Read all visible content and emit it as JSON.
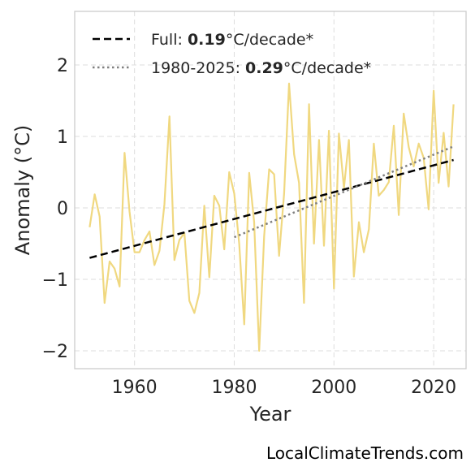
{
  "chart_data": {
    "type": "line",
    "xlabel": "Year",
    "ylabel": "Anomaly (°C)",
    "xlim": [
      1948,
      2026.5
    ],
    "ylim": [
      -2.25,
      2.75
    ],
    "xticks": [
      1960,
      1980,
      2000,
      2020
    ],
    "yticks": [
      -2,
      -1,
      0,
      1,
      2
    ],
    "ytick_labels": [
      "−2",
      "−1",
      "0",
      "1",
      "2"
    ],
    "grid": true,
    "legend_position": "top-left",
    "series": [
      {
        "style": "solid",
        "color": "#f0d880",
        "x": [
          1951,
          1952,
          1953,
          1954,
          1955,
          1956,
          1957,
          1958,
          1959,
          1960,
          1961,
          1962,
          1963,
          1964,
          1965,
          1966,
          1967,
          1968,
          1969,
          1970,
          1971,
          1972,
          1973,
          1974,
          1975,
          1976,
          1977,
          1978,
          1979,
          1980,
          1981,
          1982,
          1983,
          1984,
          1985,
          1986,
          1987,
          1988,
          1989,
          1990,
          1991,
          1992,
          1993,
          1994,
          1995,
          1996,
          1997,
          1998,
          1999,
          2000,
          2001,
          2002,
          2003,
          2004,
          2005,
          2006,
          2007,
          2008,
          2009,
          2010,
          2011,
          2012,
          2013,
          2014,
          2015,
          2016,
          2017,
          2018,
          2019,
          2020,
          2021,
          2022,
          2023,
          2024
        ],
        "values": [
          -0.27,
          0.19,
          -0.12,
          -1.33,
          -0.75,
          -0.85,
          -1.1,
          0.77,
          -0.05,
          -0.62,
          -0.62,
          -0.45,
          -0.33,
          -0.8,
          -0.6,
          0.05,
          1.28,
          -0.73,
          -0.45,
          -0.35,
          -1.3,
          -1.47,
          -1.19,
          0.03,
          -0.97,
          0.17,
          0.03,
          -0.58,
          0.5,
          0.2,
          -0.5,
          -1.63,
          0.49,
          -0.2,
          -2.0,
          -0.4,
          0.54,
          0.47,
          -0.67,
          0.2,
          1.74,
          0.75,
          0.35,
          -1.33,
          1.45,
          -0.5,
          0.95,
          -0.53,
          1.08,
          -1.13,
          1.04,
          0.28,
          0.95,
          -0.96,
          -0.2,
          -0.62,
          -0.3,
          0.9,
          0.17,
          0.25,
          0.36,
          1.15,
          -0.1,
          1.32,
          0.85,
          0.58,
          0.9,
          0.7,
          -0.02,
          1.64,
          0.35,
          1.05,
          0.3,
          1.45
        ]
      },
      {
        "name": "Full",
        "style": "dashed",
        "color": "#000000",
        "x": [
          1951,
          2024
        ],
        "values": [
          -0.7,
          0.67
        ],
        "legend_prefix": "Full: ",
        "legend_value": "0.19",
        "legend_suffix": "°C/decade*"
      },
      {
        "name": "1980-2025",
        "style": "dotted",
        "color": "#808080",
        "x": [
          1980,
          2024
        ],
        "values": [
          -0.41,
          0.86
        ],
        "legend_prefix": "1980-2025: ",
        "legend_value": "0.29",
        "legend_suffix": "°C/decade*"
      }
    ]
  },
  "credit": "LocalClimateTrends.com"
}
